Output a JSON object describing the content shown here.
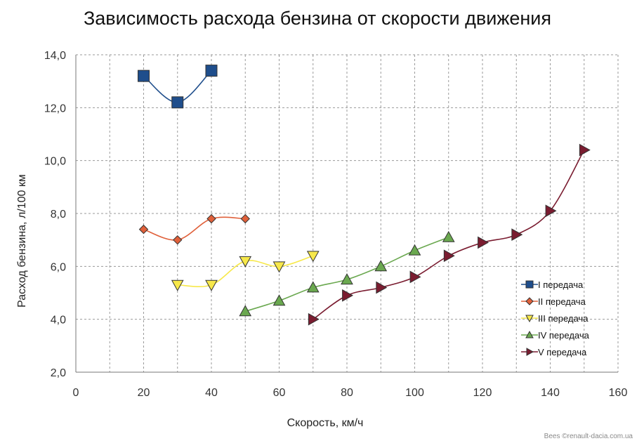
{
  "chart_data": {
    "type": "line",
    "title": "Зависимость расхода бензина от скорости движения",
    "xlabel": "Скорость, км/ч",
    "ylabel": "Расход бензина, л/100 км",
    "xlim": [
      0,
      160
    ],
    "ylim": [
      2,
      14
    ],
    "x_ticks": [
      0,
      20,
      40,
      60,
      80,
      100,
      120,
      140,
      160
    ],
    "x_tick_labels": [
      "0",
      "20",
      "40",
      "60",
      "80",
      "100",
      "120",
      "140",
      "160"
    ],
    "y_ticks": [
      2,
      4,
      6,
      8,
      10,
      12,
      14
    ],
    "y_tick_labels": [
      "2,0",
      "4,0",
      "6,0",
      "8,0",
      "10,0",
      "12,0",
      "14,0"
    ],
    "grid": true,
    "grid_style": "dashed",
    "legend_position": "right",
    "series": [
      {
        "name": "I передача",
        "marker": "square",
        "color": "#1f4e8c",
        "x": [
          20,
          30,
          40
        ],
        "y": [
          13.2,
          12.2,
          13.4
        ]
      },
      {
        "name": "II передача",
        "marker": "diamond",
        "color": "#e0603a",
        "x": [
          20,
          30,
          40,
          50
        ],
        "y": [
          7.4,
          7.0,
          7.8,
          7.8
        ]
      },
      {
        "name": "III передача",
        "marker": "triangle-down",
        "color": "#f7e84a",
        "x": [
          30,
          40,
          50,
          60,
          70
        ],
        "y": [
          5.3,
          5.3,
          6.2,
          6.0,
          6.4
        ]
      },
      {
        "name": "IV передача",
        "marker": "triangle-up",
        "color": "#6aa84f",
        "x": [
          50,
          60,
          70,
          80,
          90,
          100,
          110
        ],
        "y": [
          4.3,
          4.7,
          5.2,
          5.5,
          6.0,
          6.6,
          7.1
        ]
      },
      {
        "name": "V передача",
        "marker": "triangle-right",
        "color": "#7a1c30",
        "x": [
          70,
          80,
          90,
          100,
          110,
          120,
          130,
          140,
          150
        ],
        "y": [
          4.0,
          4.9,
          5.2,
          5.6,
          6.4,
          6.9,
          7.2,
          8.1,
          10.4
        ]
      }
    ]
  },
  "watermark": "Bees ©renault-dacia.com.ua"
}
